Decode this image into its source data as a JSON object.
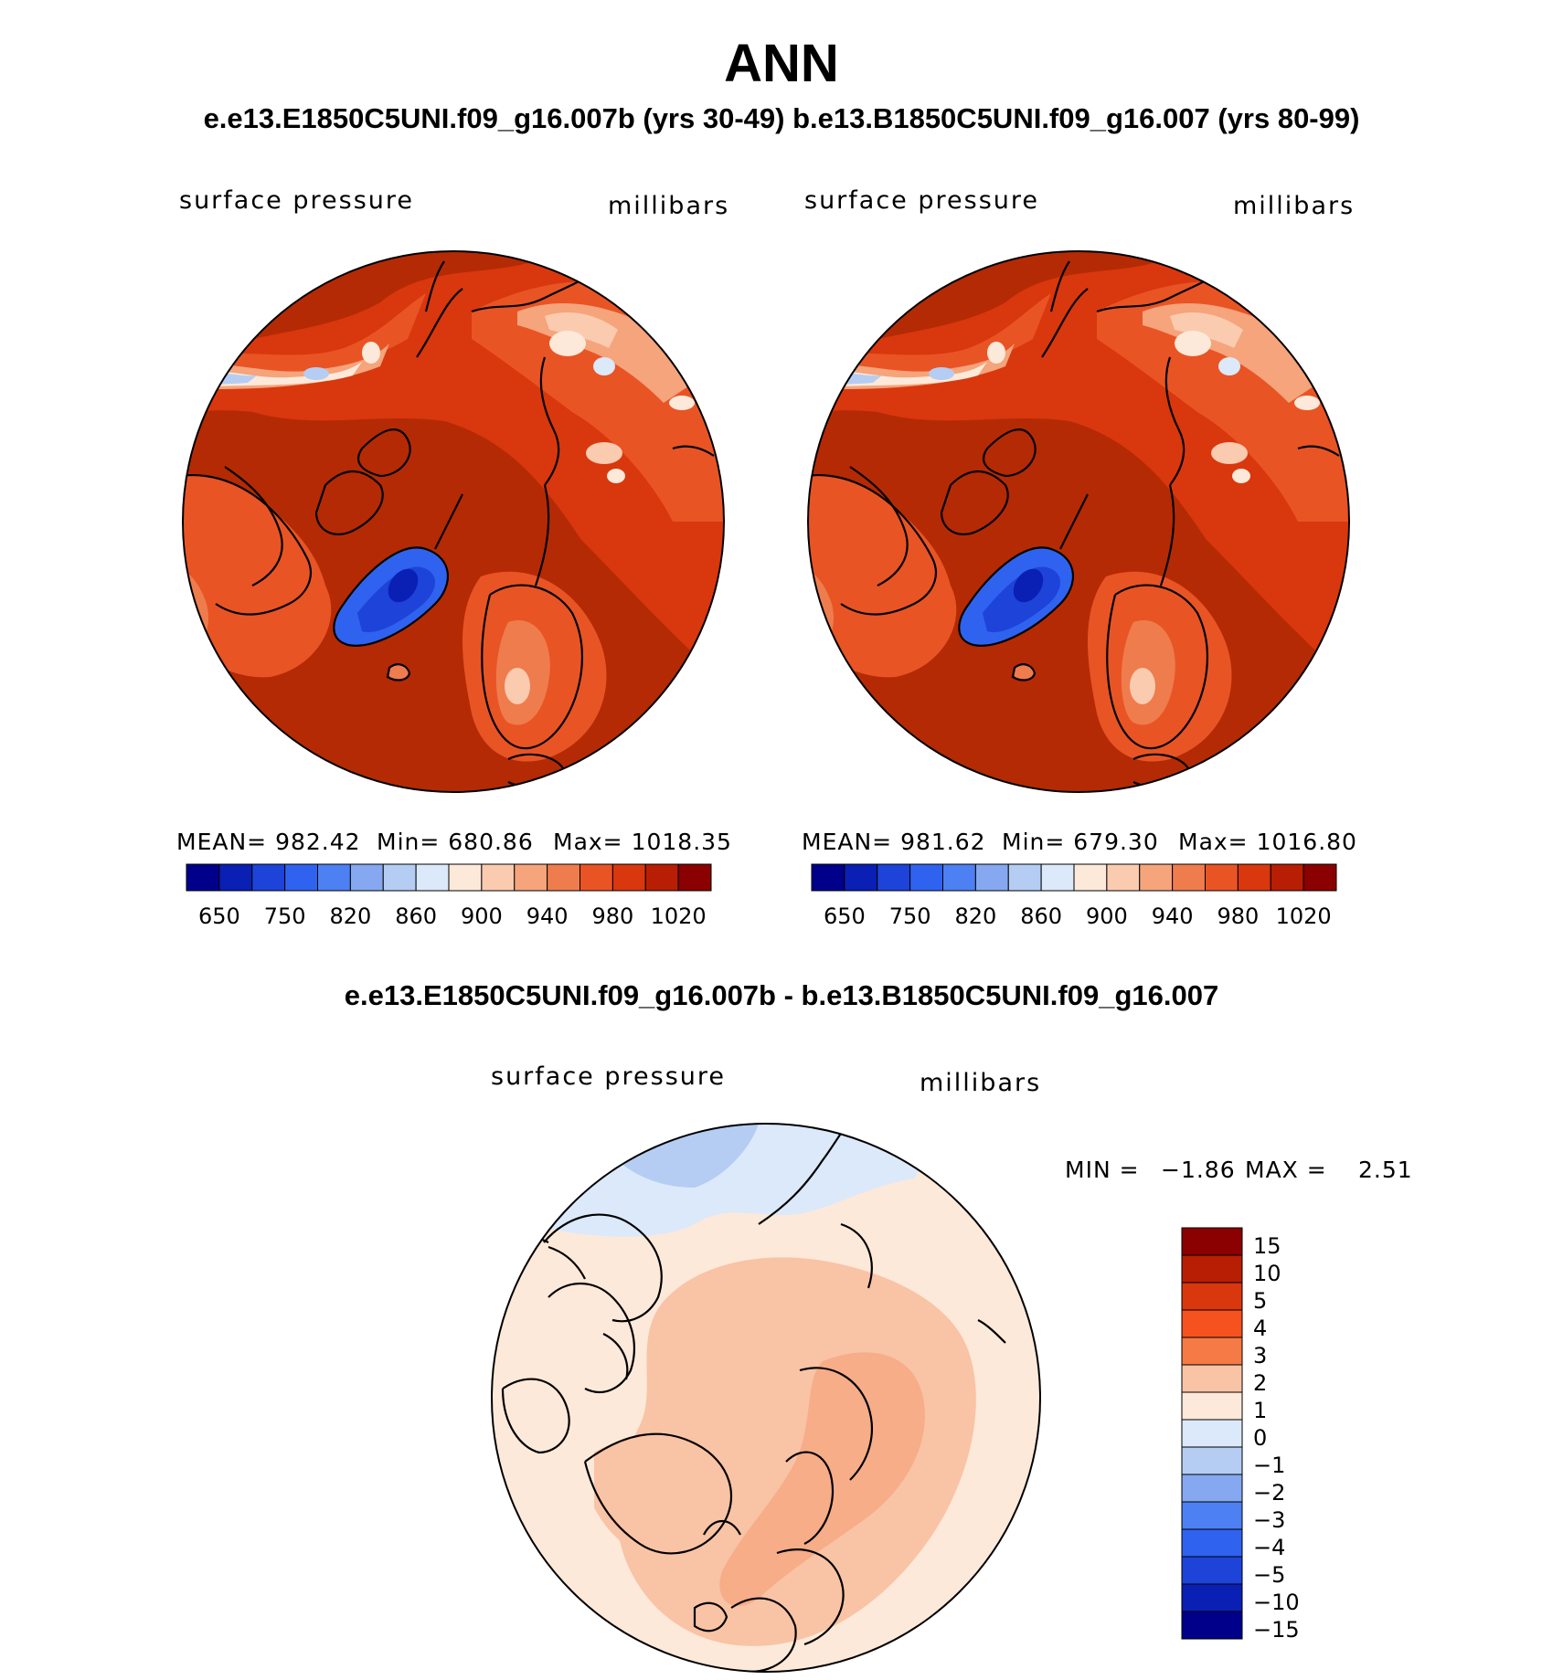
{
  "title": "ANN",
  "subtitle": "e.e13.E1850C5UNI.f09_g16.007b (yrs 30-49)  b.e13.B1850C5UNI.f09_g16.007 (yrs 80-99)",
  "panels": [
    {
      "variable": "surface pressure",
      "units": "millibars",
      "mean": "MEAN= 982.42",
      "min": "Min= 680.86",
      "max": "Max= 1018.35"
    },
    {
      "variable": "surface pressure",
      "units": "millibars",
      "mean": "MEAN= 981.62",
      "min": "Min= 679.30",
      "max": "Max= 1016.80"
    }
  ],
  "colorbar": {
    "colors": [
      "#00008b",
      "#0a1fb4",
      "#1d43d9",
      "#2f62ef",
      "#4d80f2",
      "#85a8f0",
      "#b5cdf3",
      "#dbe9fa",
      "#fde9d9",
      "#fbcbb0",
      "#f5a47c",
      "#ef7c4d",
      "#e95425",
      "#d9370d",
      "#b81e04",
      "#8b0000"
    ],
    "ticks": [
      "650",
      "750",
      "820",
      "860",
      "900",
      "940",
      "980",
      "1020"
    ]
  },
  "diff": {
    "title": "e.e13.E1850C5UNI.f09_g16.007b - b.e13.B1850C5UNI.f09_g16.007",
    "variable": "surface pressure",
    "units": "millibars",
    "min_label": "MIN =",
    "min_value": "−1.86",
    "max_label": "MAX =",
    "max_value": "2.51",
    "colorbar_colors": [
      "#8b0000",
      "#b81e04",
      "#d9370d",
      "#f5521f",
      "#f57a45",
      "#f9c3a5",
      "#fde9d9",
      "#dbe9fa",
      "#b5cdf3",
      "#85a8f0",
      "#4d80f2",
      "#2f62ef",
      "#1d43d9",
      "#0a1fb4",
      "#00008b"
    ],
    "colorbar_ticks": [
      "15",
      "10",
      "5",
      "4",
      "3",
      "2",
      "1",
      "0",
      "−1",
      "−2",
      "−3",
      "−4",
      "−5",
      "−10",
      "−15"
    ]
  },
  "colors": {
    "ocean_high": "#b42a05",
    "land_mid": "#e64f1f",
    "diff_bg": "#fde9d9",
    "diff_pos": "#f9c3a5",
    "diff_neg": "#dbe9fa"
  }
}
